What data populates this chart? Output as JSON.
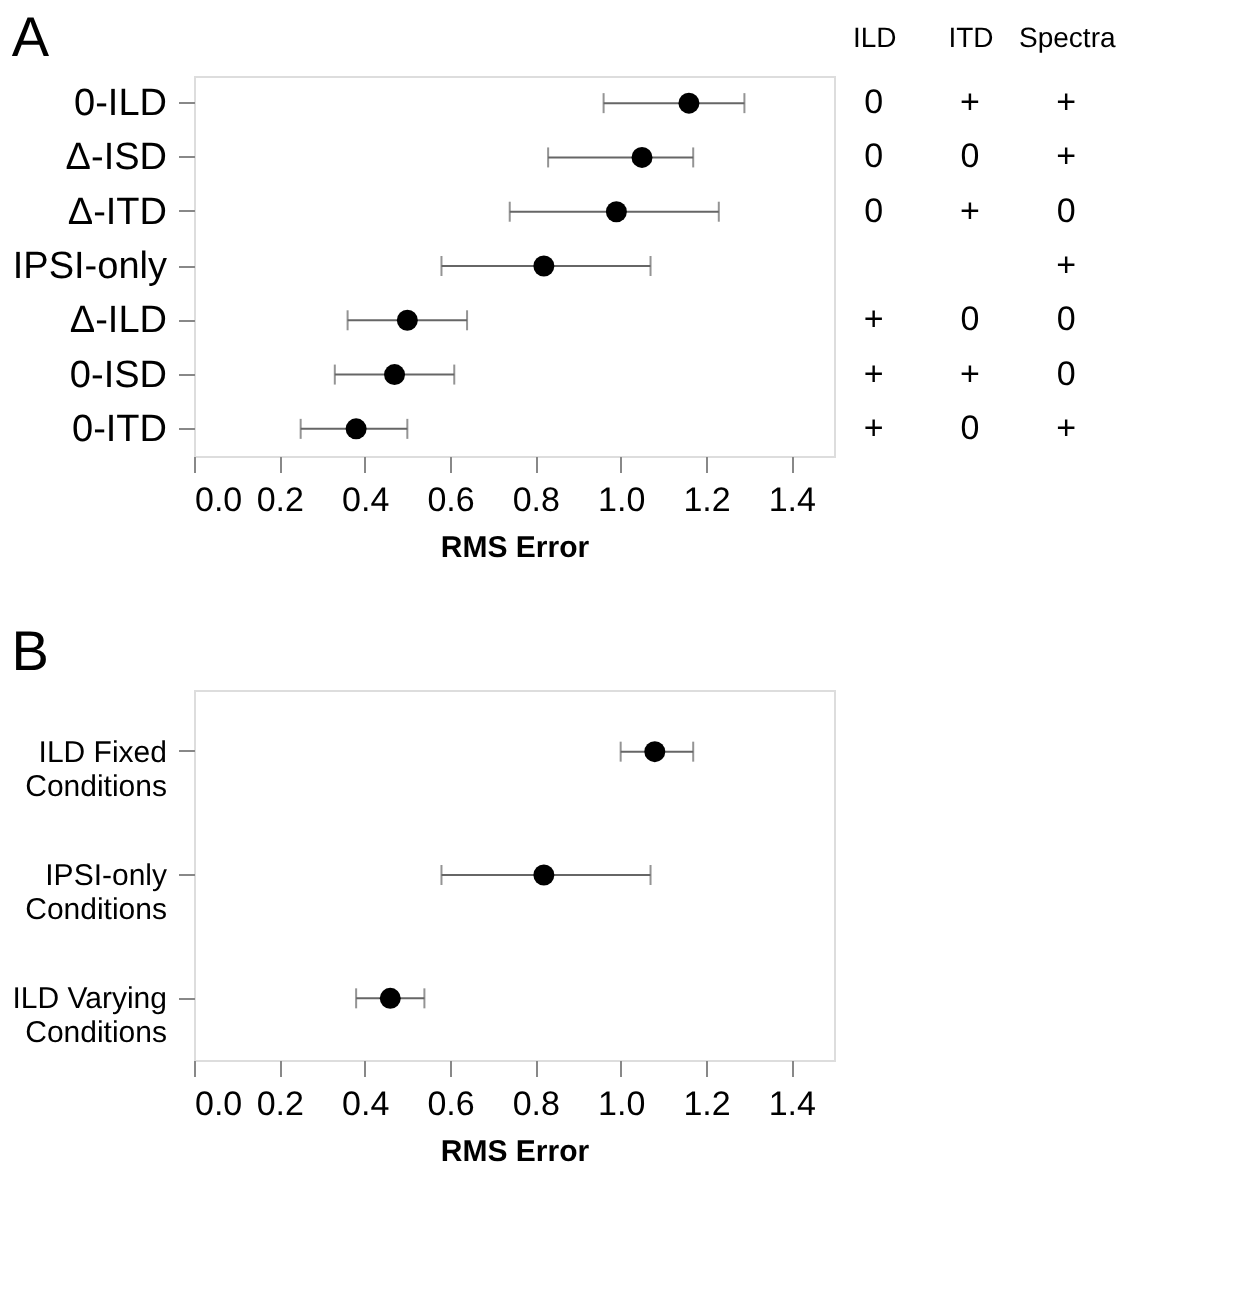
{
  "chart_data": [
    {
      "type": "scatter",
      "title": "A",
      "orientation": "horizontal",
      "categories": [
        "0-ILD",
        "Δ-ISD",
        "Δ-ITD",
        "IPSI-only",
        "Δ-ILD",
        "0-ISD",
        "0-ITD"
      ],
      "values": [
        1.16,
        1.05,
        0.99,
        0.82,
        0.5,
        0.47,
        0.38
      ],
      "errors": [
        [
          0.96,
          1.29
        ],
        [
          0.83,
          1.17
        ],
        [
          0.74,
          1.23
        ],
        [
          0.58,
          1.07
        ],
        [
          0.36,
          0.64
        ],
        [
          0.33,
          0.61
        ],
        [
          0.25,
          0.5
        ]
      ],
      "color": "#000000",
      "marker": "circle",
      "xlabel": "RMS Error",
      "xlim": [
        0,
        1.5
      ],
      "xticks": [
        {
          "value": 0,
          "label": "0.0"
        },
        0.2,
        0.4,
        0.6,
        0.8,
        {
          "value": 1,
          "label": "1.0"
        },
        1.2,
        1.4
      ],
      "grid": false
    },
    {
      "type": "other",
      "categories": [
        "ILD",
        "ITD",
        "Spectra"
      ],
      "cell_labels": [
        [
          "0",
          "+",
          "+"
        ],
        [
          "0",
          "0",
          "+"
        ],
        [
          "0",
          "+",
          "0"
        ],
        [
          null,
          null,
          "+"
        ],
        [
          "+",
          "0",
          "0"
        ],
        [
          "+",
          "+",
          "0"
        ],
        [
          "+",
          "0",
          "+"
        ]
      ]
    },
    {
      "type": "scatter",
      "title": "B",
      "orientation": "horizontal",
      "categories": [
        "ILD Fixed\nConditions",
        "IPSI-only\nConditions",
        "ILD Varying\nConditions"
      ],
      "values": [
        1.08,
        0.82,
        0.46
      ],
      "errors": [
        [
          1.0,
          1.17
        ],
        [
          0.58,
          1.07
        ],
        [
          0.38,
          0.54
        ]
      ],
      "color": "#000000",
      "marker": "circle",
      "xlabel": "RMS Error",
      "xlim": [
        0,
        1.5
      ],
      "xticks": [
        {
          "value": 0,
          "label": "0.0"
        },
        0.2,
        0.4,
        0.6,
        0.8,
        {
          "value": 1,
          "label": "1.0"
        },
        1.2,
        1.4
      ],
      "grid": false
    }
  ]
}
